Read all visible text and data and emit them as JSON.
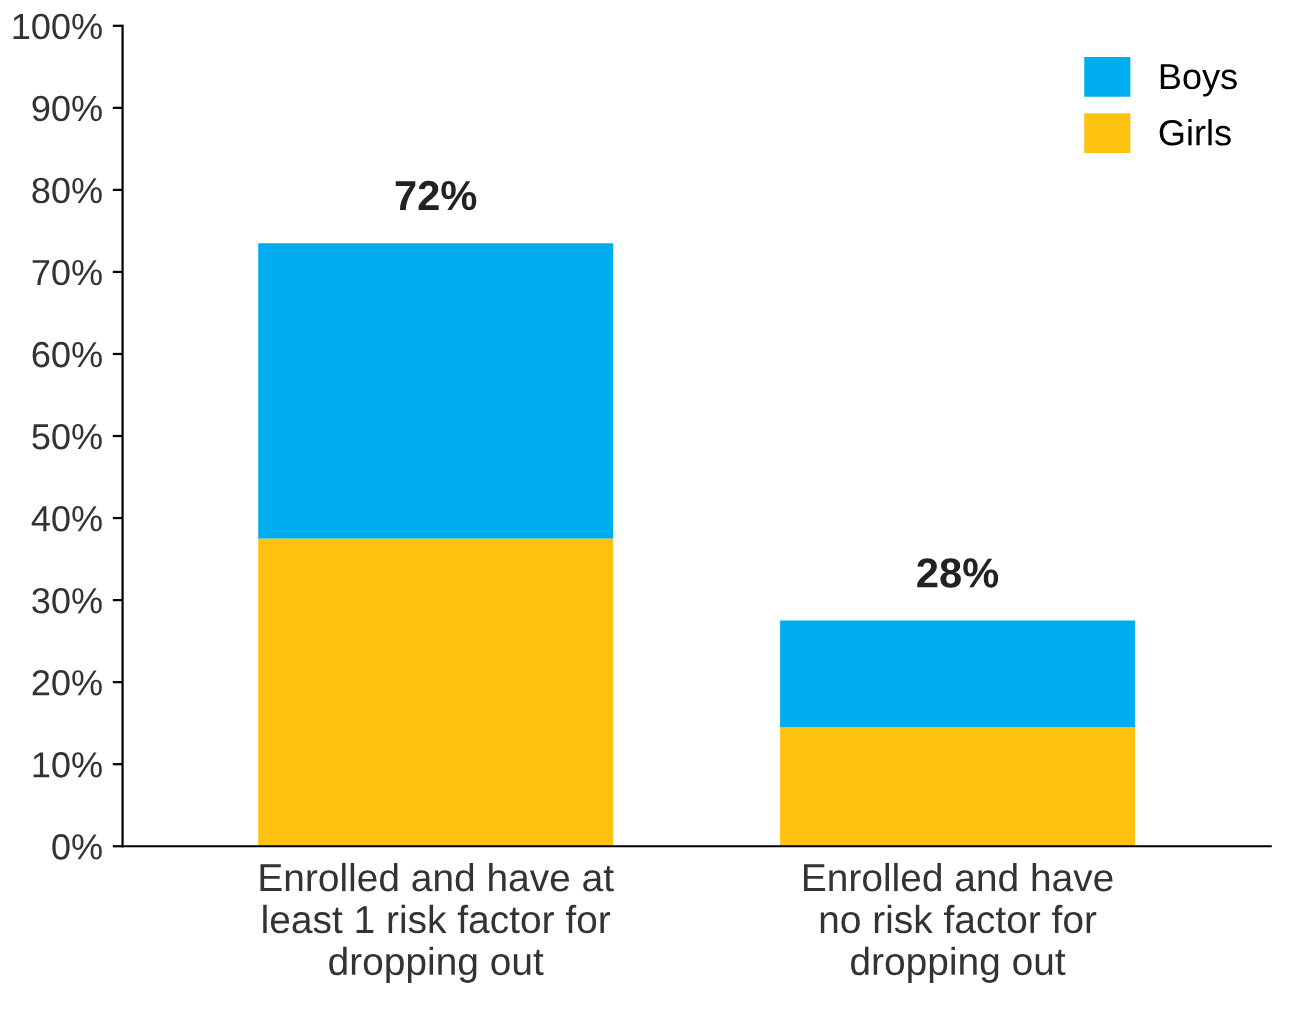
{
  "chart_data": {
    "type": "bar",
    "stacked": true,
    "categories": [
      "Enrolled and have at\nleast 1 risk factor for\ndropping out",
      "Enrolled and have\nno risk factor for\ndropping out"
    ],
    "series": [
      {
        "name": "Girls",
        "color": "#fdc210",
        "values": [
          37.5,
          14.5
        ]
      },
      {
        "name": "Boys",
        "color": "#00aeef",
        "values": [
          36,
          13
        ]
      }
    ],
    "totals": [
      "72%",
      "28%"
    ],
    "ylim": [
      0,
      100
    ],
    "yticks": [
      {
        "value": 0,
        "label": "0%"
      },
      {
        "value": 10,
        "label": "10%"
      },
      {
        "value": 20,
        "label": "20%"
      },
      {
        "value": 30,
        "label": "30%"
      },
      {
        "value": 40,
        "label": "40%"
      },
      {
        "value": 50,
        "label": "50%"
      },
      {
        "value": 60,
        "label": "60%"
      },
      {
        "value": 70,
        "label": "70%"
      },
      {
        "value": 80,
        "label": "80%"
      },
      {
        "value": 90,
        "label": "90%"
      },
      {
        "value": 100,
        "label": "100%"
      }
    ],
    "grid": false,
    "legend": "top right"
  }
}
